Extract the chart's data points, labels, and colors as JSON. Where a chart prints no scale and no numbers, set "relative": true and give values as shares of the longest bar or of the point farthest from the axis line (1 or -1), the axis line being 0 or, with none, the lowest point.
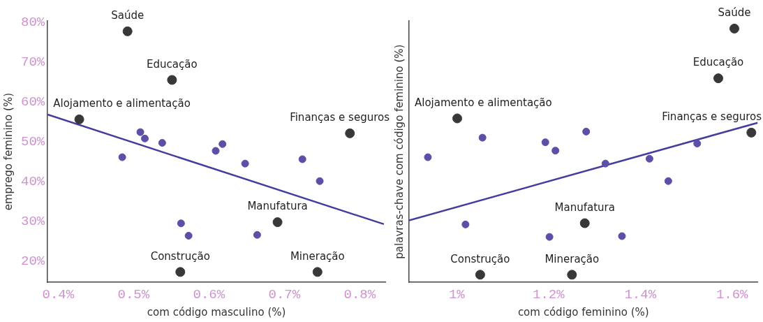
{
  "chart_data": [
    {
      "type": "scatter",
      "xlabel": "com código masculino (%)",
      "ylabel": "emprego feminino (%)",
      "marker": "circle",
      "grid": false,
      "legend": false,
      "xlim": [
        0.386,
        0.834
      ],
      "xticks": [
        {
          "value": 0.4,
          "label": "0.4%"
        },
        {
          "value": 0.5,
          "label": "0.5%"
        },
        {
          "value": 0.6,
          "label": "0.6%"
        },
        {
          "value": 0.7,
          "label": "0.7%"
        },
        {
          "value": 0.8,
          "label": "0.8%"
        }
      ],
      "ylim": [
        14.7,
        80.3
      ],
      "yticks": [
        {
          "value": 20,
          "label": "20%"
        },
        {
          "value": 30,
          "label": "30%"
        },
        {
          "value": 40,
          "label": "40%"
        },
        {
          "value": 50,
          "label": "50%"
        },
        {
          "value": 60,
          "label": "60%"
        },
        {
          "value": 70,
          "label": "70%"
        },
        {
          "value": 80,
          "label": "80%"
        }
      ],
      "series": [
        {
          "color": "#5b4fa8",
          "x": [
            0.485,
            0.509,
            0.515,
            0.538,
            0.609,
            0.618,
            0.648,
            0.724,
            0.747,
            0.563,
            0.573,
            0.664
          ],
          "values": [
            46.1,
            52.4,
            50.8,
            49.7,
            47.7,
            49.4,
            44.5,
            45.6,
            40.1,
            29.5,
            26.4,
            26.6
          ]
        },
        {
          "color": "#38383b",
          "x": [
            0.492,
            0.551,
            0.428,
            0.787,
            0.691,
            0.562,
            0.744
          ],
          "values": [
            77.7,
            65.5,
            55.6,
            52.1,
            29.8,
            17.3,
            17.3
          ]
        },
        {
          "type": "line",
          "marker": "none",
          "color": "#443d9f",
          "x": [
            0.386,
            0.832
          ],
          "values": [
            56.8,
            29.3
          ]
        }
      ],
      "annotations": [
        {
          "text": "Saúde",
          "x": 0.492,
          "y": 77.7
        },
        {
          "text": "Educação",
          "x": 0.551,
          "y": 65.5
        },
        {
          "text": "Alojamento e alimentação",
          "x": 0.428,
          "y": 55.6
        },
        {
          "text": "Finanças e seguros",
          "x": 0.787,
          "y": 52.1
        },
        {
          "text": "Manufatura",
          "x": 0.691,
          "y": 29.8
        },
        {
          "text": "Construção",
          "x": 0.562,
          "y": 17.3
        },
        {
          "text": "Mineração",
          "x": 0.744,
          "y": 17.3
        }
      ]
    },
    {
      "type": "scatter",
      "xlabel": "com código feminino (%)",
      "ylabel": "palavras-chave com código feminino (%)",
      "marker": "circle",
      "grid": false,
      "legend": false,
      "relative": true,
      "tick_labels": "x",
      "xlim": [
        0.896,
        1.656
      ],
      "xticks": [
        {
          "value": 1,
          "label": "1%"
        },
        {
          "value": 1.2,
          "label": "1.2%"
        },
        {
          "value": 1.4,
          "label": "1.4%"
        },
        {
          "value": 1.6,
          "label": "1.6%"
        }
      ],
      "series": [
        {
          "color": "#5b4fa8",
          "x": [
            0.937,
            1.056,
            1.193,
            1.215,
            1.282,
            1.324,
            1.42,
            1.524,
            1.461,
            1.019,
            1.202,
            1.36
          ],
          "values": [
            0.493,
            0.57,
            0.552,
            0.519,
            0.594,
            0.468,
            0.487,
            0.547,
            0.399,
            0.228,
            0.179,
            0.182
          ]
        },
        {
          "color": "#38383b",
          "x": [
            1.605,
            1.57,
            1.001,
            1.642,
            1.279,
            1.051,
            1.251
          ],
          "values": [
            1,
            0.804,
            0.646,
            0.59,
            0.233,
            0.03,
            0.03
          ]
        },
        {
          "type": "line",
          "marker": "none",
          "color": "#443d9f",
          "x": [
            0.896,
            1.656
          ],
          "values": [
            0.244,
            0.629
          ]
        }
      ],
      "annotations": [
        {
          "text": "Saúde",
          "x": 1.605,
          "y": 1
        },
        {
          "text": "Educação",
          "x": 1.57,
          "y": 0.804
        },
        {
          "text": "Alojamento e alimentação",
          "x": 1.001,
          "y": 0.646
        },
        {
          "text": "Finanças e seguros",
          "x": 1.642,
          "y": 0.59
        },
        {
          "text": "Manufatura",
          "x": 1.279,
          "y": 0.233
        },
        {
          "text": "Construção",
          "x": 1.051,
          "y": 0.03
        },
        {
          "text": "Mineração",
          "x": 1.251,
          "y": 0.03
        }
      ]
    }
  ]
}
